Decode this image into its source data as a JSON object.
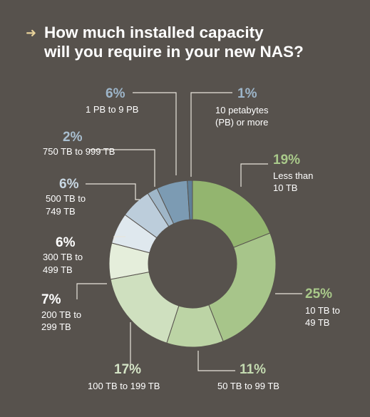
{
  "title": {
    "arrow": "➜",
    "line1": "How much installed capacity",
    "line2": "will you require in your new NAS?"
  },
  "chart_data": {
    "type": "pie",
    "variant": "donut",
    "title": "How much installed capacity will you require in your new NAS?",
    "slices": [
      {
        "value": 19,
        "pct_label": "19%",
        "label": [
          "Less than",
          "10 TB"
        ],
        "color": "#93b56f",
        "label_color": "#a9c98a"
      },
      {
        "value": 25,
        "pct_label": "25%",
        "label": [
          "10 TB to",
          "49 TB"
        ],
        "color": "#a7c58a",
        "label_color": "#a9c98a"
      },
      {
        "value": 11,
        "pct_label": "11%",
        "label": [
          "50 TB to 99 TB"
        ],
        "color": "#bcd4a5",
        "label_color": "#c3dab0"
      },
      {
        "value": 17,
        "pct_label": "17%",
        "label": [
          "100 TB to 199 TB"
        ],
        "color": "#cfe0bf",
        "label_color": "#d4e4c6"
      },
      {
        "value": 7,
        "pct_label": "7%",
        "label": [
          "200 TB to",
          "299 TB"
        ],
        "color": "#e5eedb",
        "label_color": "#ffffff"
      },
      {
        "value": 6,
        "pct_label": "6%",
        "label": [
          "300 TB to",
          "499 TB"
        ],
        "color": "#dfe8ee",
        "label_color": "#ffffff"
      },
      {
        "value": 6,
        "pct_label": "6%",
        "label": [
          "500 TB to",
          "749 TB"
        ],
        "color": "#bccddb",
        "label_color": "#c9d8e4"
      },
      {
        "value": 2,
        "pct_label": "2%",
        "label": [
          "750 TB to 999 TB"
        ],
        "color": "#9fb6c8",
        "label_color": "#a9bfd0"
      },
      {
        "value": 6,
        "pct_label": "6%",
        "label": [
          "1 PB to 9 PB"
        ],
        "color": "#7c9bb3",
        "label_color": "#9db5c9"
      },
      {
        "value": 1,
        "pct_label": "1%",
        "label": [
          "10 petabytes",
          "(PB) or more"
        ],
        "color": "#5f7f97",
        "label_color": "#9db5c9"
      }
    ]
  }
}
